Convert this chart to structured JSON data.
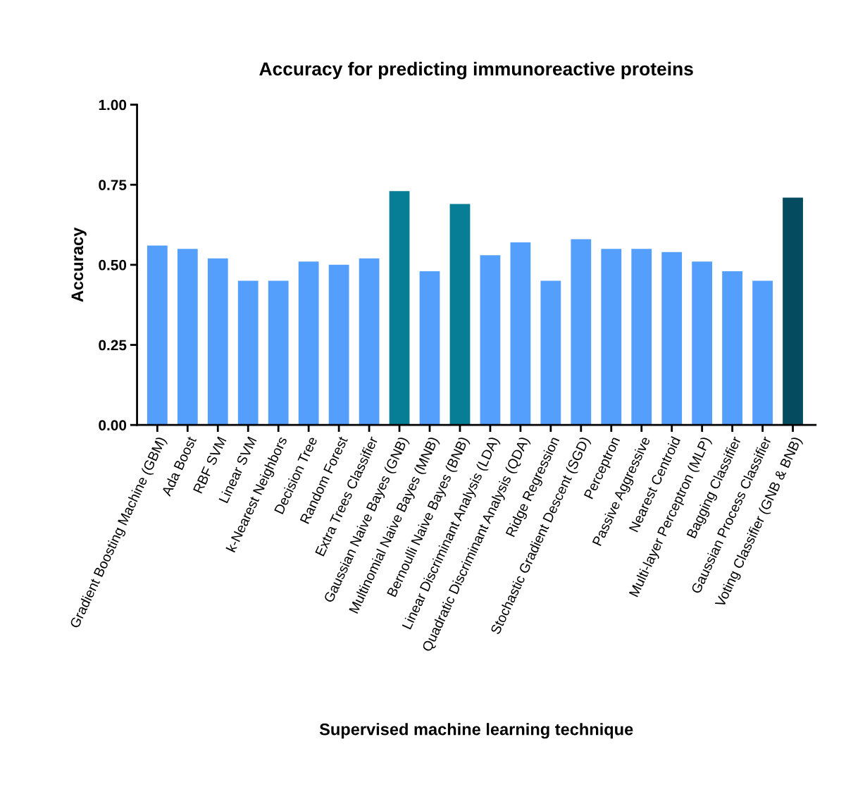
{
  "chart_data": {
    "type": "bar",
    "title": "Accuracy for predicting immunoreactive proteins",
    "xlabel": "Supervised machine learning technique",
    "ylabel": "Accuracy",
    "categories": [
      "Gradient Boosting Machine (GBM)",
      "Ada Boost",
      "RBF SVM",
      "Linear SVM",
      "k-Nearest Neighbors",
      "Decision Tree",
      "Random Forest",
      "Extra Trees Classifier",
      "Gaussian Naive Bayes (GNB)",
      "Multinomial Naive Bayes (MNB)",
      "Bernoulli Naive Bayes (BNB)",
      "Linear Discriminant Analysis (LDA)",
      "Quadratic Discriminant Analysis (QDA)",
      "Ridge Regression",
      "Stochastic Gradient Descent (SGD)",
      "Perceptron",
      "Passive Aggressive",
      "Nearest Centroid",
      "Multi-layer Perceptron (MLP)",
      "Bagging Classifier",
      "Gaussian Process Classifier",
      "Voting Classifier (GNB & BNB)"
    ],
    "values": [
      0.56,
      0.55,
      0.52,
      0.45,
      0.45,
      0.51,
      0.5,
      0.52,
      0.73,
      0.48,
      0.69,
      0.53,
      0.57,
      0.45,
      0.58,
      0.55,
      0.55,
      0.54,
      0.51,
      0.48,
      0.45,
      0.71
    ],
    "colors": [
      "#559ffc",
      "#559ffc",
      "#559ffc",
      "#559ffc",
      "#559ffc",
      "#559ffc",
      "#559ffc",
      "#559ffc",
      "#087d96",
      "#559ffc",
      "#087d96",
      "#559ffc",
      "#559ffc",
      "#559ffc",
      "#559ffc",
      "#559ffc",
      "#559ffc",
      "#559ffc",
      "#559ffc",
      "#559ffc",
      "#559ffc",
      "#044b5f"
    ],
    "ylim": [
      0,
      1
    ],
    "yticks": [
      {
        "value": 0,
        "label": "0.00"
      },
      {
        "value": 0.25,
        "label": "0.25"
      },
      {
        "value": 0.5,
        "label": "0.50"
      },
      {
        "value": 0.75,
        "label": "0.75"
      },
      {
        "value": 1,
        "label": "1.00"
      }
    ],
    "grid": false,
    "legend": false
  }
}
